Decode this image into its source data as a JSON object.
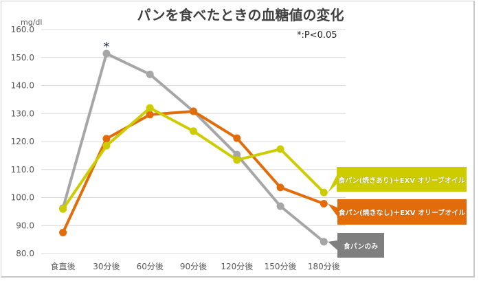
{
  "chart_data": {
    "type": "line",
    "title": "パンを食べたときの血糖値の変化",
    "ylabel": "mg/dl",
    "annotation": "*:P<0.05",
    "significance_marker": {
      "label": "*",
      "series": "食パンのみ",
      "category": "30分後"
    },
    "categories": [
      "食直後",
      "30分後",
      "60分後",
      "90分後",
      "120分後",
      "150分後",
      "180分後"
    ],
    "ylim": [
      80,
      160
    ],
    "yticks": [
      "80.0",
      "90.0",
      "100.0",
      "110.0",
      "120.0",
      "130.0",
      "140.0",
      "150.0",
      "160.0"
    ],
    "grid": true,
    "series": [
      {
        "name": "食パンのみ",
        "color": "#a6a6a6",
        "values": [
          96.2,
          151.4,
          144.0,
          130.8,
          115.3,
          96.9,
          84.2
        ]
      },
      {
        "name": "食パン(焼きなし)＋EXV オリーブオイル",
        "color": "#e36c0a",
        "values": [
          87.5,
          121.0,
          129.6,
          130.8,
          121.2,
          103.6,
          97.8
        ]
      },
      {
        "name": "食パン(焼きあり)＋EXV オリーブオイル",
        "color": "#cccc00",
        "values": [
          95.9,
          118.5,
          132.0,
          123.7,
          113.4,
          117.3,
          101.8
        ]
      }
    ]
  }
}
